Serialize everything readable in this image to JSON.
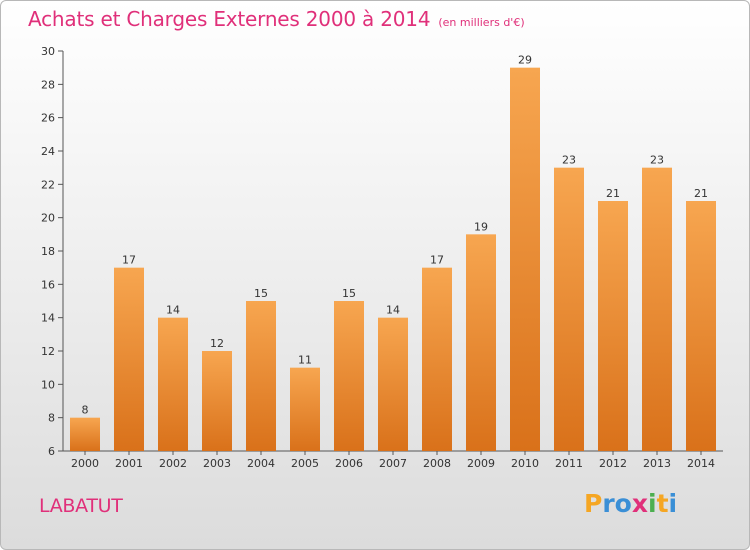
{
  "title": "Achats et Charges Externes 2000 à 2014",
  "unit": "(en milliers d'€)",
  "commune": "LABATUT",
  "logo": {
    "text": "Proxiti",
    "letters": [
      "P",
      "r",
      "o",
      "x",
      "i",
      "t",
      "i"
    ],
    "colors": [
      "#f5a623",
      "#3a8fd6",
      "#3a8fd6",
      "#e0307a",
      "#4caf50",
      "#f5a623",
      "#3a8fd6"
    ]
  },
  "colors": {
    "bar_top": "#f7a650",
    "bar_bottom": "#d9711a",
    "title": "#e0307a"
  },
  "chart_data": {
    "type": "bar",
    "title": "Achats et Charges Externes 2000 à 2014",
    "xlabel": "",
    "ylabel": "",
    "categories": [
      "2000",
      "2001",
      "2002",
      "2003",
      "2004",
      "2005",
      "2006",
      "2007",
      "2008",
      "2009",
      "2010",
      "2011",
      "2012",
      "2013",
      "2014"
    ],
    "values": [
      8,
      17,
      14,
      12,
      15,
      11,
      15,
      14,
      17,
      19,
      29,
      23,
      21,
      23,
      21
    ],
    "ylim": [
      6,
      30
    ],
    "yticks": [
      6,
      8,
      10,
      12,
      14,
      16,
      18,
      20,
      22,
      24,
      26,
      28,
      30
    ],
    "grid": false,
    "legend": "none"
  }
}
